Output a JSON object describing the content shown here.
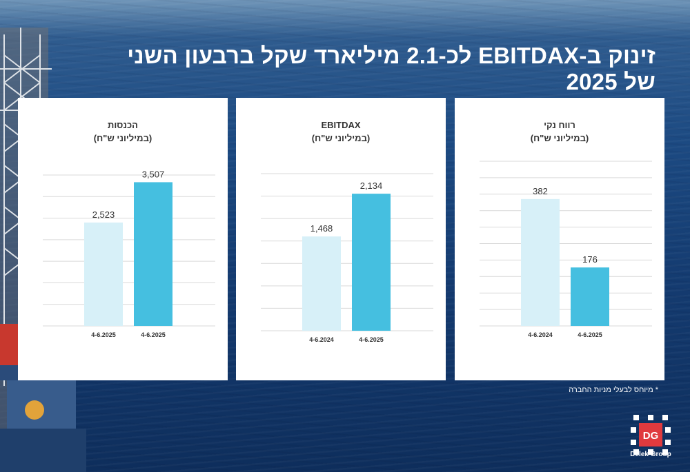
{
  "title": "זינוק ב-EBITDAX לכ-2.1 מיליארד שקל ברבעון השני של 2025",
  "footnote": "* מיוחס לבעלי מניות החברה",
  "logo": {
    "letters": "DG",
    "name": "Delek Group"
  },
  "colors": {
    "light_bar": "#d7f0f8",
    "dark_bar": "#45bfe0",
    "grid": "#d9d9d9",
    "text": "#333333"
  },
  "chart_data": [
    {
      "type": "bar",
      "title": "הכנסות",
      "subtitle": "(במיליוני ש\"ח)",
      "categories": [
        "4-6.2025",
        "4-6.2025"
      ],
      "values": [
        2523,
        3507
      ],
      "value_labels": [
        "2,523",
        "3,507"
      ],
      "ylim": [
        0,
        3800
      ],
      "grid": true
    },
    {
      "type": "bar",
      "title": "EBITDAX",
      "subtitle": "(במיליוני ש\"ח)",
      "categories": [
        "4-6.2024",
        "4-6.2025"
      ],
      "values": [
        1468,
        2134
      ],
      "value_labels": [
        "1,468",
        "2,134"
      ],
      "ylim": [
        0,
        2500
      ],
      "grid": true
    },
    {
      "type": "bar",
      "title": "רווח נקי",
      "subtitle": "(במיליוני ש\"ח)",
      "categories": [
        "4-6.2024",
        "4-6.2025"
      ],
      "values": [
        382,
        176
      ],
      "value_labels": [
        "382",
        "176"
      ],
      "ylim": [
        0,
        500
      ],
      "grid": true
    }
  ]
}
